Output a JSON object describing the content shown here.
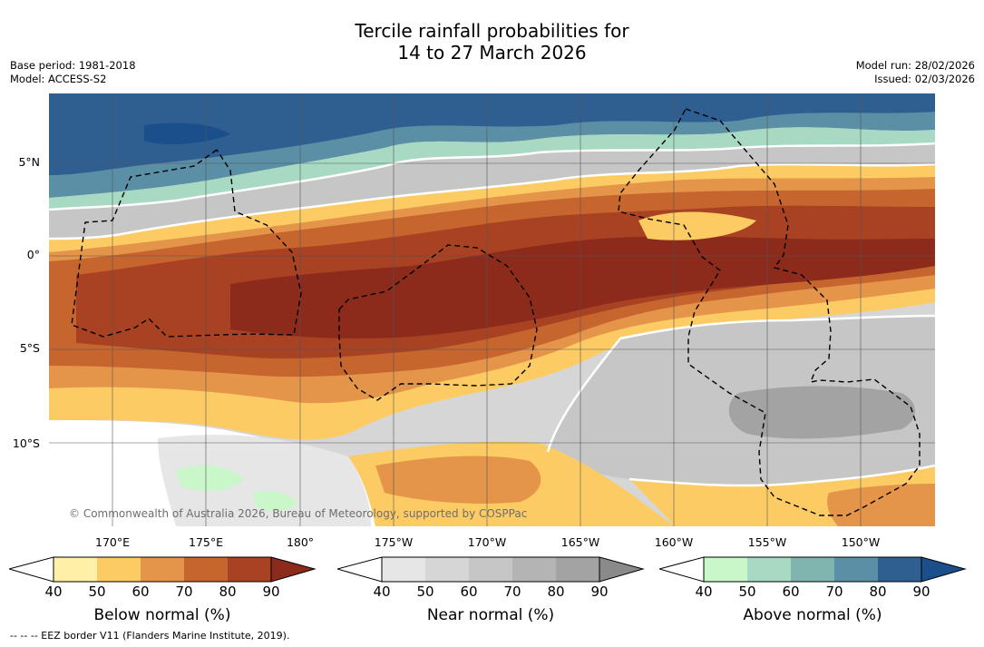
{
  "title": {
    "line1": "Tercile rainfall probabilities for",
    "line2": "14 to 27 March 2026"
  },
  "meta": {
    "base_period": "Base period: 1981-2018",
    "model": "Model: ACCESS-S2",
    "model_run": "Model run: 28/02/2026",
    "issued": "Issued: 02/03/2026"
  },
  "map": {
    "lat_labels": [
      "5°N",
      "0°",
      "5°S",
      "10°S"
    ],
    "lon_labels": [
      "170°E",
      "175°E",
      "180°",
      "175°W",
      "170°W",
      "165°W",
      "160°W",
      "155°W",
      "150°W"
    ],
    "copyright": "© Commonwealth of Australia 2026, Bureau of Meteorology, supported by COSPPac"
  },
  "colorbars": [
    {
      "label": "Below normal (%)",
      "ticks": [
        "40",
        "50",
        "60",
        "70",
        "80",
        "90"
      ],
      "colors": [
        "#fff0a8",
        "#fdcb63",
        "#e4954a",
        "#c7652f",
        "#a84223",
        "#8c2a1c"
      ]
    },
    {
      "label": "Near normal (%)",
      "ticks": [
        "40",
        "50",
        "60",
        "70",
        "80",
        "90"
      ],
      "colors": [
        "#e6e6e6",
        "#d6d6d6",
        "#c6c6c6",
        "#b4b4b4",
        "#a3a3a3",
        "#8a8a8a"
      ]
    },
    {
      "label": "Above normal (%)",
      "ticks": [
        "40",
        "50",
        "60",
        "70",
        "80",
        "90"
      ],
      "colors": [
        "#c9f7c9",
        "#a8d9c2",
        "#80b4ae",
        "#5a8fa5",
        "#2f5e91",
        "#1a4f8c"
      ]
    }
  ],
  "footnote": "--  --  -- EEZ border V11 (Flanders Marine Institute, 2019)."
}
